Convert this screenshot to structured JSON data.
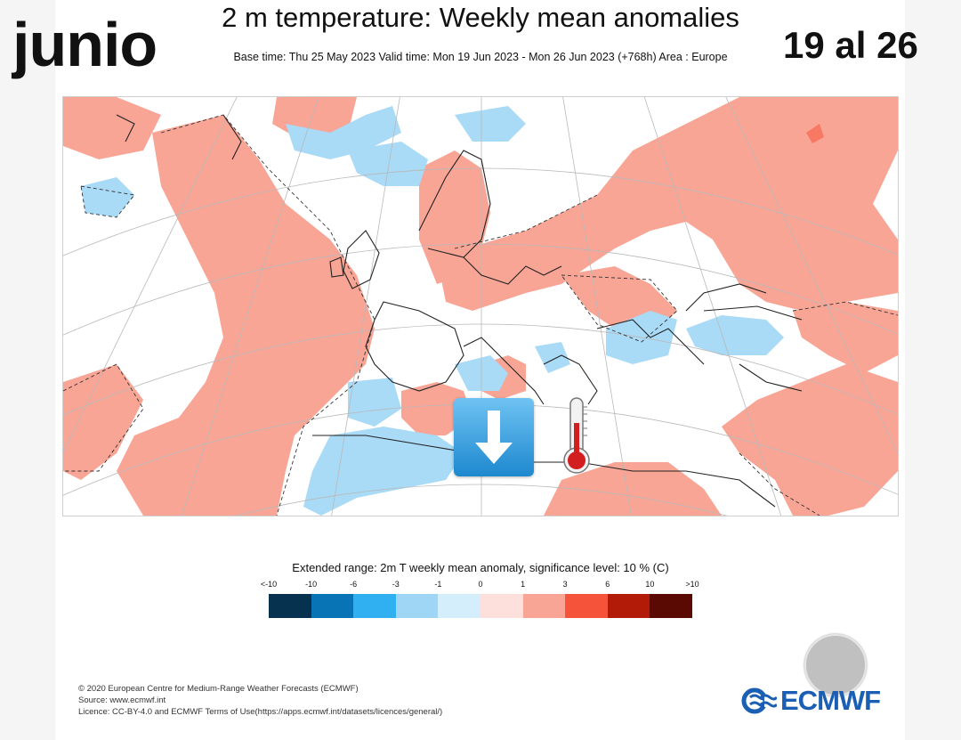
{
  "header": {
    "title": "2 m temperature: Weekly mean anomalies",
    "subtitle": "Base time: Thu 25 May 2023 Valid time: Mon 19 Jun 2023 - Mon 26 Jun 2023 (+768h) Area : Europe"
  },
  "overlay": {
    "month": "junio",
    "dates": "19 al 26"
  },
  "map": {
    "area": "Europe",
    "cold_color": "#a9daf6",
    "warm_color": "#f8a596",
    "icons": [
      "down-arrow-icon",
      "thermometer-icon"
    ]
  },
  "legend": {
    "caption": "Extended range: 2m T weekly mean anomaly, significance level: 10 % (C)",
    "ticks": [
      "<-10",
      "-10",
      "-6",
      "-3",
      "-1",
      "0",
      "1",
      "3",
      "6",
      "10",
      ">10"
    ],
    "colors": [
      "#06324f",
      "#0873b5",
      "#30b0f0",
      "#9fd6f6",
      "#d5eefb",
      "#fde0dc",
      "#f8a596",
      "#f5533a",
      "#b31b09",
      "#5a0a03"
    ]
  },
  "footer": {
    "line1": "© 2020 European Centre for Medium-Range Weather Forecasts (ECMWF)",
    "line2": "Source: www.ecmwf.int",
    "line3": "Licence: CC-BY-4.0 and ECMWF Terms of Use(https://apps.ecmwf.int/datasets/licences/general/)"
  },
  "logo": {
    "text": "ECMWF"
  }
}
